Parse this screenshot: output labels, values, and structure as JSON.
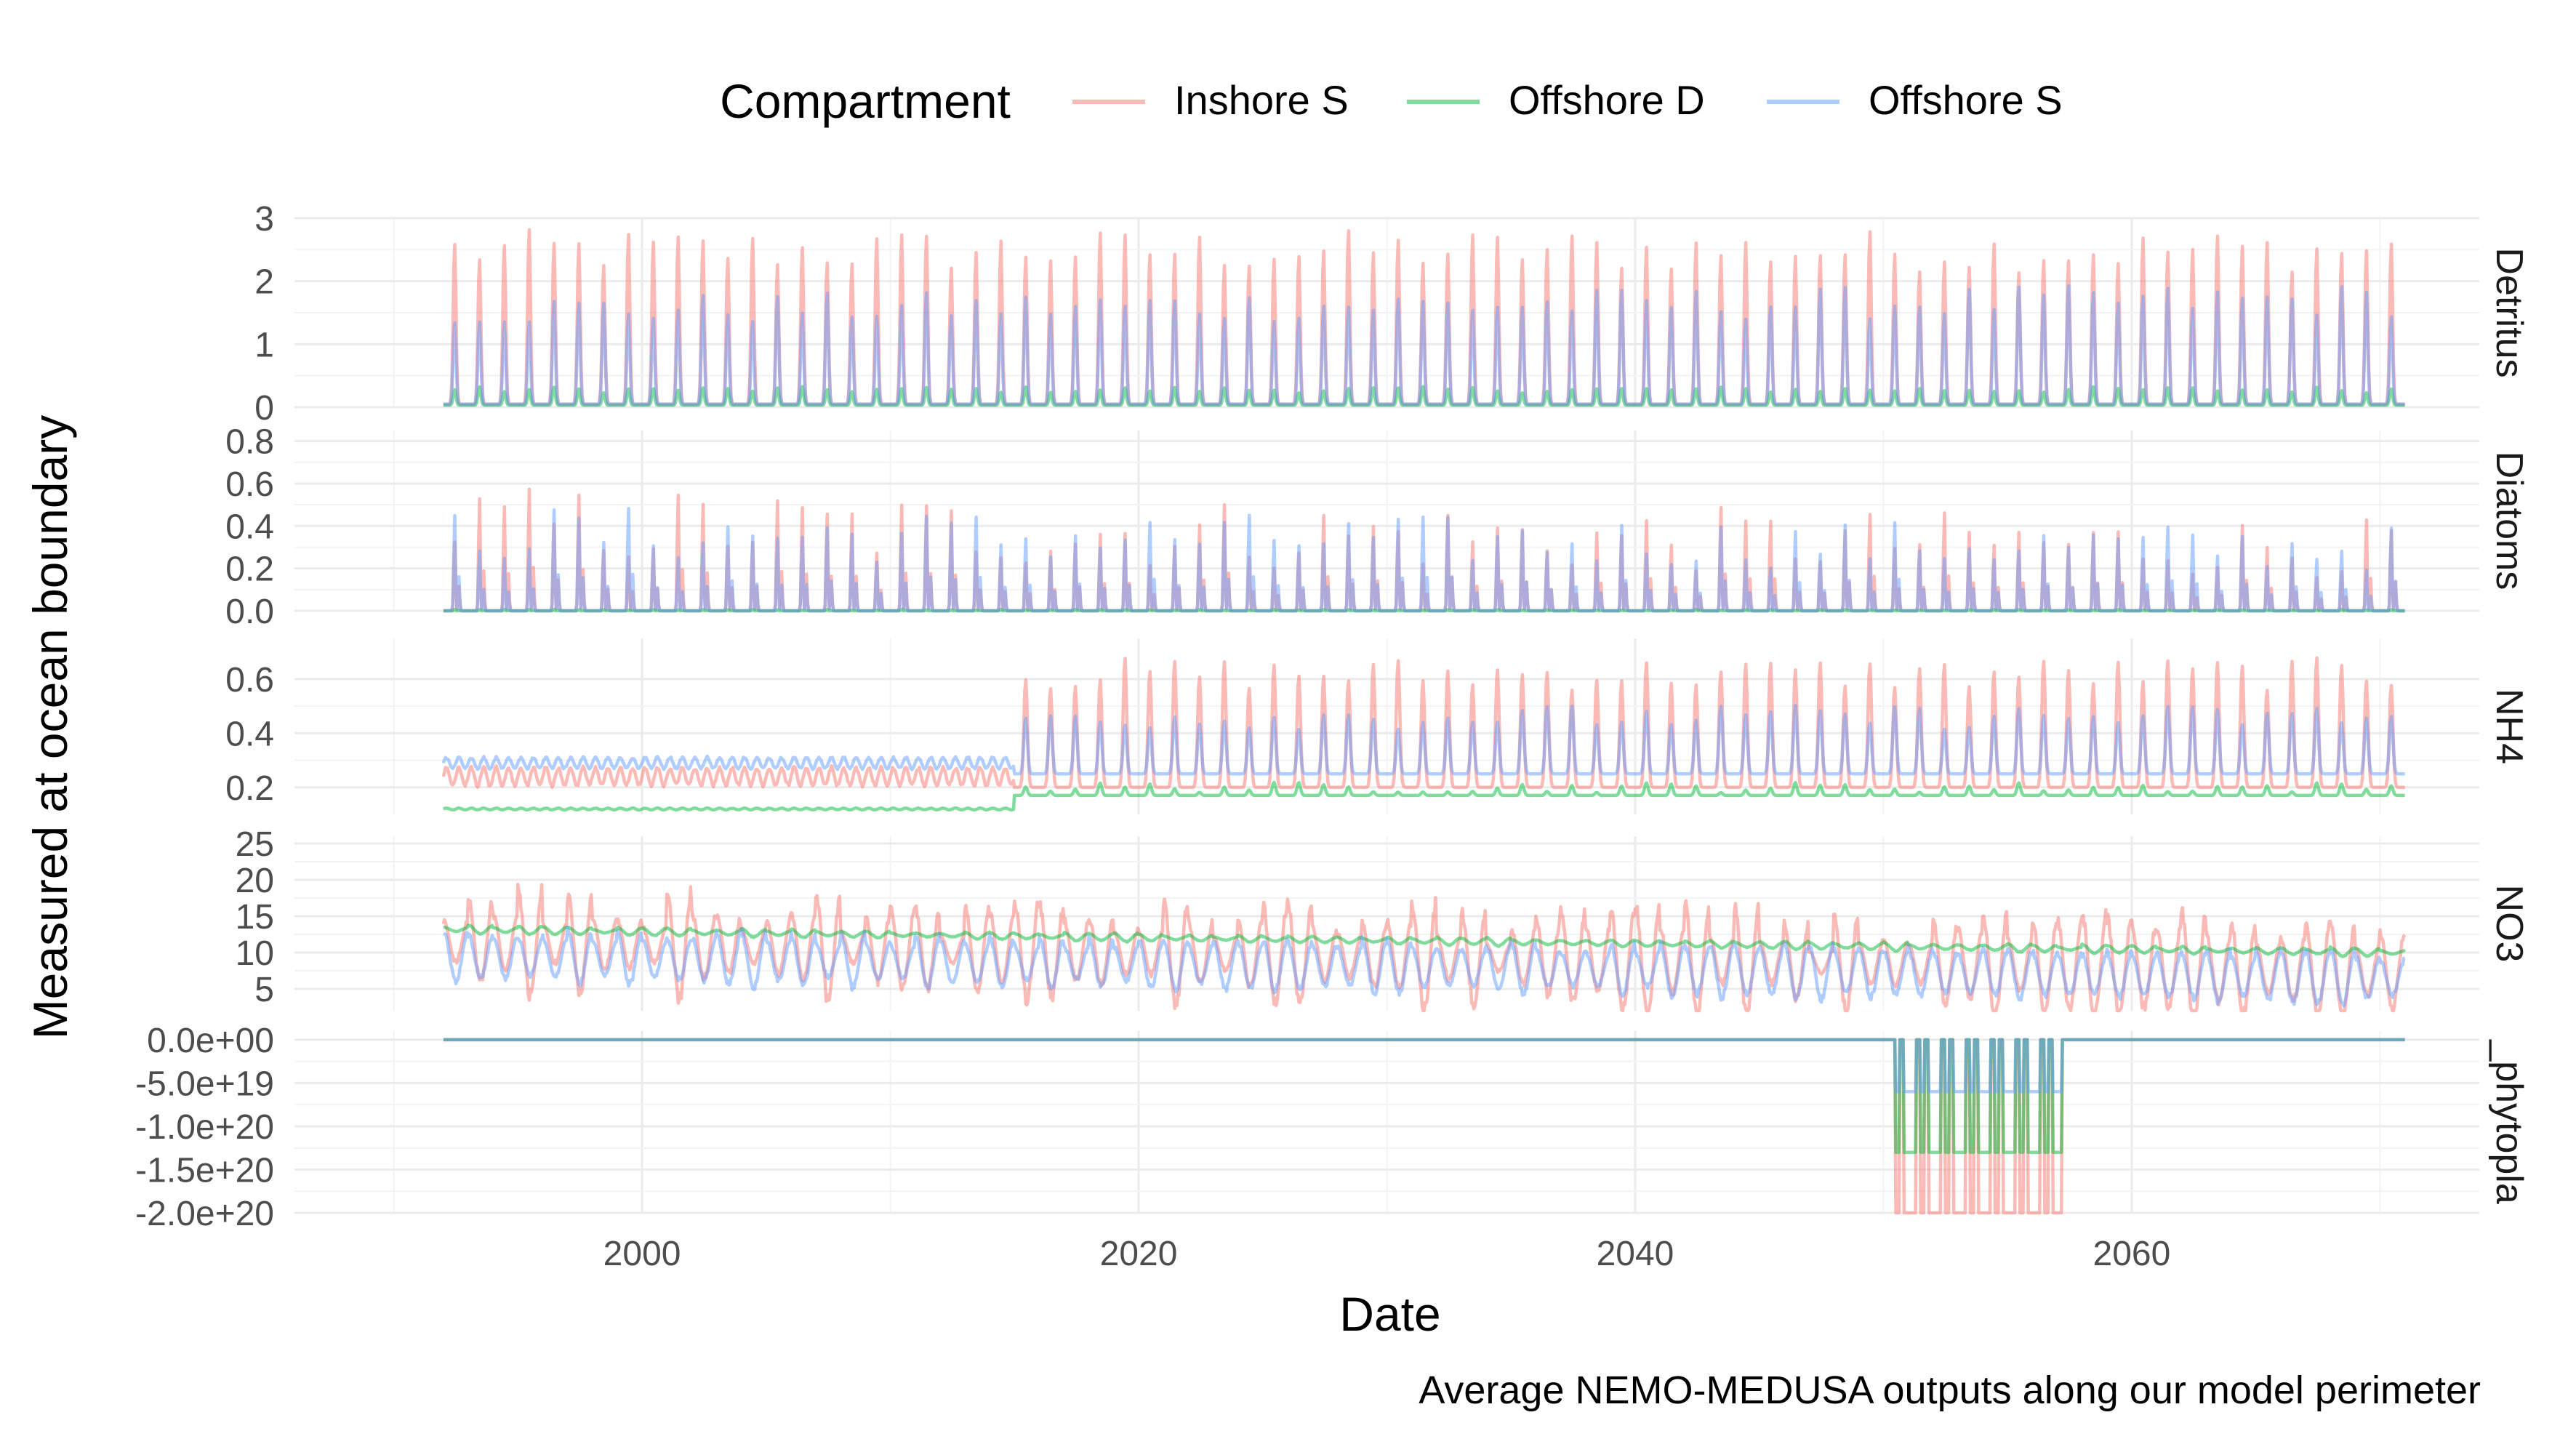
{
  "chart_data": {
    "type": "line",
    "title": "",
    "caption": "Average NEMO-MEDUSA outputs along our model perimeter",
    "xlabel": "Date",
    "ylabel": "Measured at ocean boundary",
    "x_range": [
      1992,
      2071
    ],
    "x_ticks": [
      "2000",
      "2020",
      "2040",
      "2060"
    ],
    "x_tick_values": [
      2000,
      2020,
      2040,
      2060
    ],
    "x_limits": [
      1986,
      2074
    ],
    "legend": {
      "title": "Compartment",
      "placement": "top",
      "entries": [
        "Inshore S",
        "Offshore D",
        "Offshore S"
      ]
    },
    "colors": {
      "Inshore S": "#F8766D",
      "Offshore D": "#00BA38",
      "Offshore S": "#619CFF"
    },
    "series_opacity": 0.5,
    "grid": true,
    "panels": [
      {
        "label": "Detritus",
        "ylim": [
          0,
          3
        ],
        "y_ticks": [
          "0",
          "1",
          "2",
          "3"
        ],
        "y_tick_values": [
          0,
          1,
          2,
          3
        ],
        "series": [
          {
            "name": "Inshore S",
            "baseline": 0.05,
            "peak": 2.5,
            "peak_variation": 0.35,
            "trend_per_year": 0.0,
            "pattern": "seasonal"
          },
          {
            "name": "Offshore D",
            "baseline": 0.03,
            "peak": 0.28,
            "peak_variation": 0.05,
            "trend_per_year": 0.0,
            "pattern": "seasonal"
          },
          {
            "name": "Offshore S",
            "baseline": 0.05,
            "peak": 1.55,
            "peak_variation": 0.25,
            "trend_per_year": 0.002,
            "pattern": "seasonal"
          }
        ]
      },
      {
        "label": "Diatoms",
        "ylim": [
          0,
          0.85
        ],
        "y_ticks": [
          "0.0",
          "0.2",
          "0.4",
          "0.6",
          "0.8"
        ],
        "y_tick_values": [
          0,
          0.2,
          0.4,
          0.6,
          0.8
        ],
        "series": [
          {
            "name": "Inshore S",
            "baseline": 0.0,
            "peak": 0.42,
            "peak_variation": 0.2,
            "trend_per_year": -0.0015,
            "pattern": "spike"
          },
          {
            "name": "Offshore D",
            "baseline": 0.0,
            "peak": 0.005,
            "peak_variation": 0.002,
            "trend_per_year": 0.0,
            "pattern": "spike"
          },
          {
            "name": "Offshore S",
            "baseline": 0.0,
            "peak": 0.38,
            "peak_variation": 0.14,
            "trend_per_year": -0.001,
            "pattern": "spike"
          }
        ]
      },
      {
        "label": "NH4",
        "ylim": [
          0.1,
          0.75
        ],
        "y_ticks": [
          "0.2",
          "0.4",
          "0.6"
        ],
        "y_tick_values": [
          0.2,
          0.4,
          0.6
        ],
        "series": [
          {
            "name": "Inshore S",
            "pattern": "step",
            "step_year": 2015,
            "before": {
              "mean": 0.24,
              "amp": 0.04
            },
            "after": {
              "baseline": 0.2,
              "peak": 0.62,
              "peak_variation": 0.1
            }
          },
          {
            "name": "Offshore D",
            "pattern": "step",
            "step_year": 2015,
            "before": {
              "mean": 0.12,
              "amp": 0.004
            },
            "after": {
              "baseline": 0.17,
              "peak": 0.2,
              "peak_variation": 0.01
            }
          },
          {
            "name": "Offshore S",
            "pattern": "step",
            "step_year": 2015,
            "before": {
              "mean": 0.29,
              "amp": 0.025
            },
            "after": {
              "baseline": 0.25,
              "peak": 0.46,
              "peak_variation": 0.05
            }
          }
        ]
      },
      {
        "label": "NO3",
        "ylim": [
          2,
          26
        ],
        "y_ticks": [
          "5",
          "10",
          "15",
          "20",
          "25"
        ],
        "y_tick_values": [
          5,
          10,
          15,
          20,
          25
        ],
        "series": [
          {
            "name": "Inshore S",
            "mean_start": 11.5,
            "mean_end": 7.5,
            "amp": 4.5,
            "peak_variation": 3.0,
            "pattern": "seasonal_sine"
          },
          {
            "name": "Offshore D",
            "mean_start": 13.2,
            "mean_end": 10.0,
            "amp": 0.4,
            "peak_variation": 0.2,
            "pattern": "seasonal_sine"
          },
          {
            "name": "Offshore S",
            "mean_start": 9.5,
            "mean_end": 6.5,
            "amp": 3.0,
            "peak_variation": 0.8,
            "pattern": "seasonal_sine"
          }
        ]
      },
      {
        "label": "_phytopla",
        "ylim": [
          -2e+20,
          1e+19
        ],
        "y_ticks": [
          "0.0e+00",
          "-5.0e+19",
          "-1.0e+20",
          "-1.5e+20",
          "-2.0e+20"
        ],
        "y_tick_values": [
          0,
          -5e+19,
          -1e+20,
          -1.5e+20,
          -2e+20
        ],
        "series": [
          {
            "name": "Inshore S",
            "baseline": 0,
            "dips": {
              "start_year": 2050.5,
              "end_year": 2057.2,
              "depth": -2.2e+20
            },
            "pattern": "dips"
          },
          {
            "name": "Offshore D",
            "baseline": 0,
            "dips": {
              "start_year": 2050.5,
              "end_year": 2057.2,
              "depth": -1.3e+20
            },
            "pattern": "dips"
          },
          {
            "name": "Offshore S",
            "baseline": 0,
            "dips": {
              "start_year": 2050.5,
              "end_year": 2057.2,
              "depth": -6e+19
            },
            "pattern": "dips"
          }
        ]
      }
    ]
  }
}
